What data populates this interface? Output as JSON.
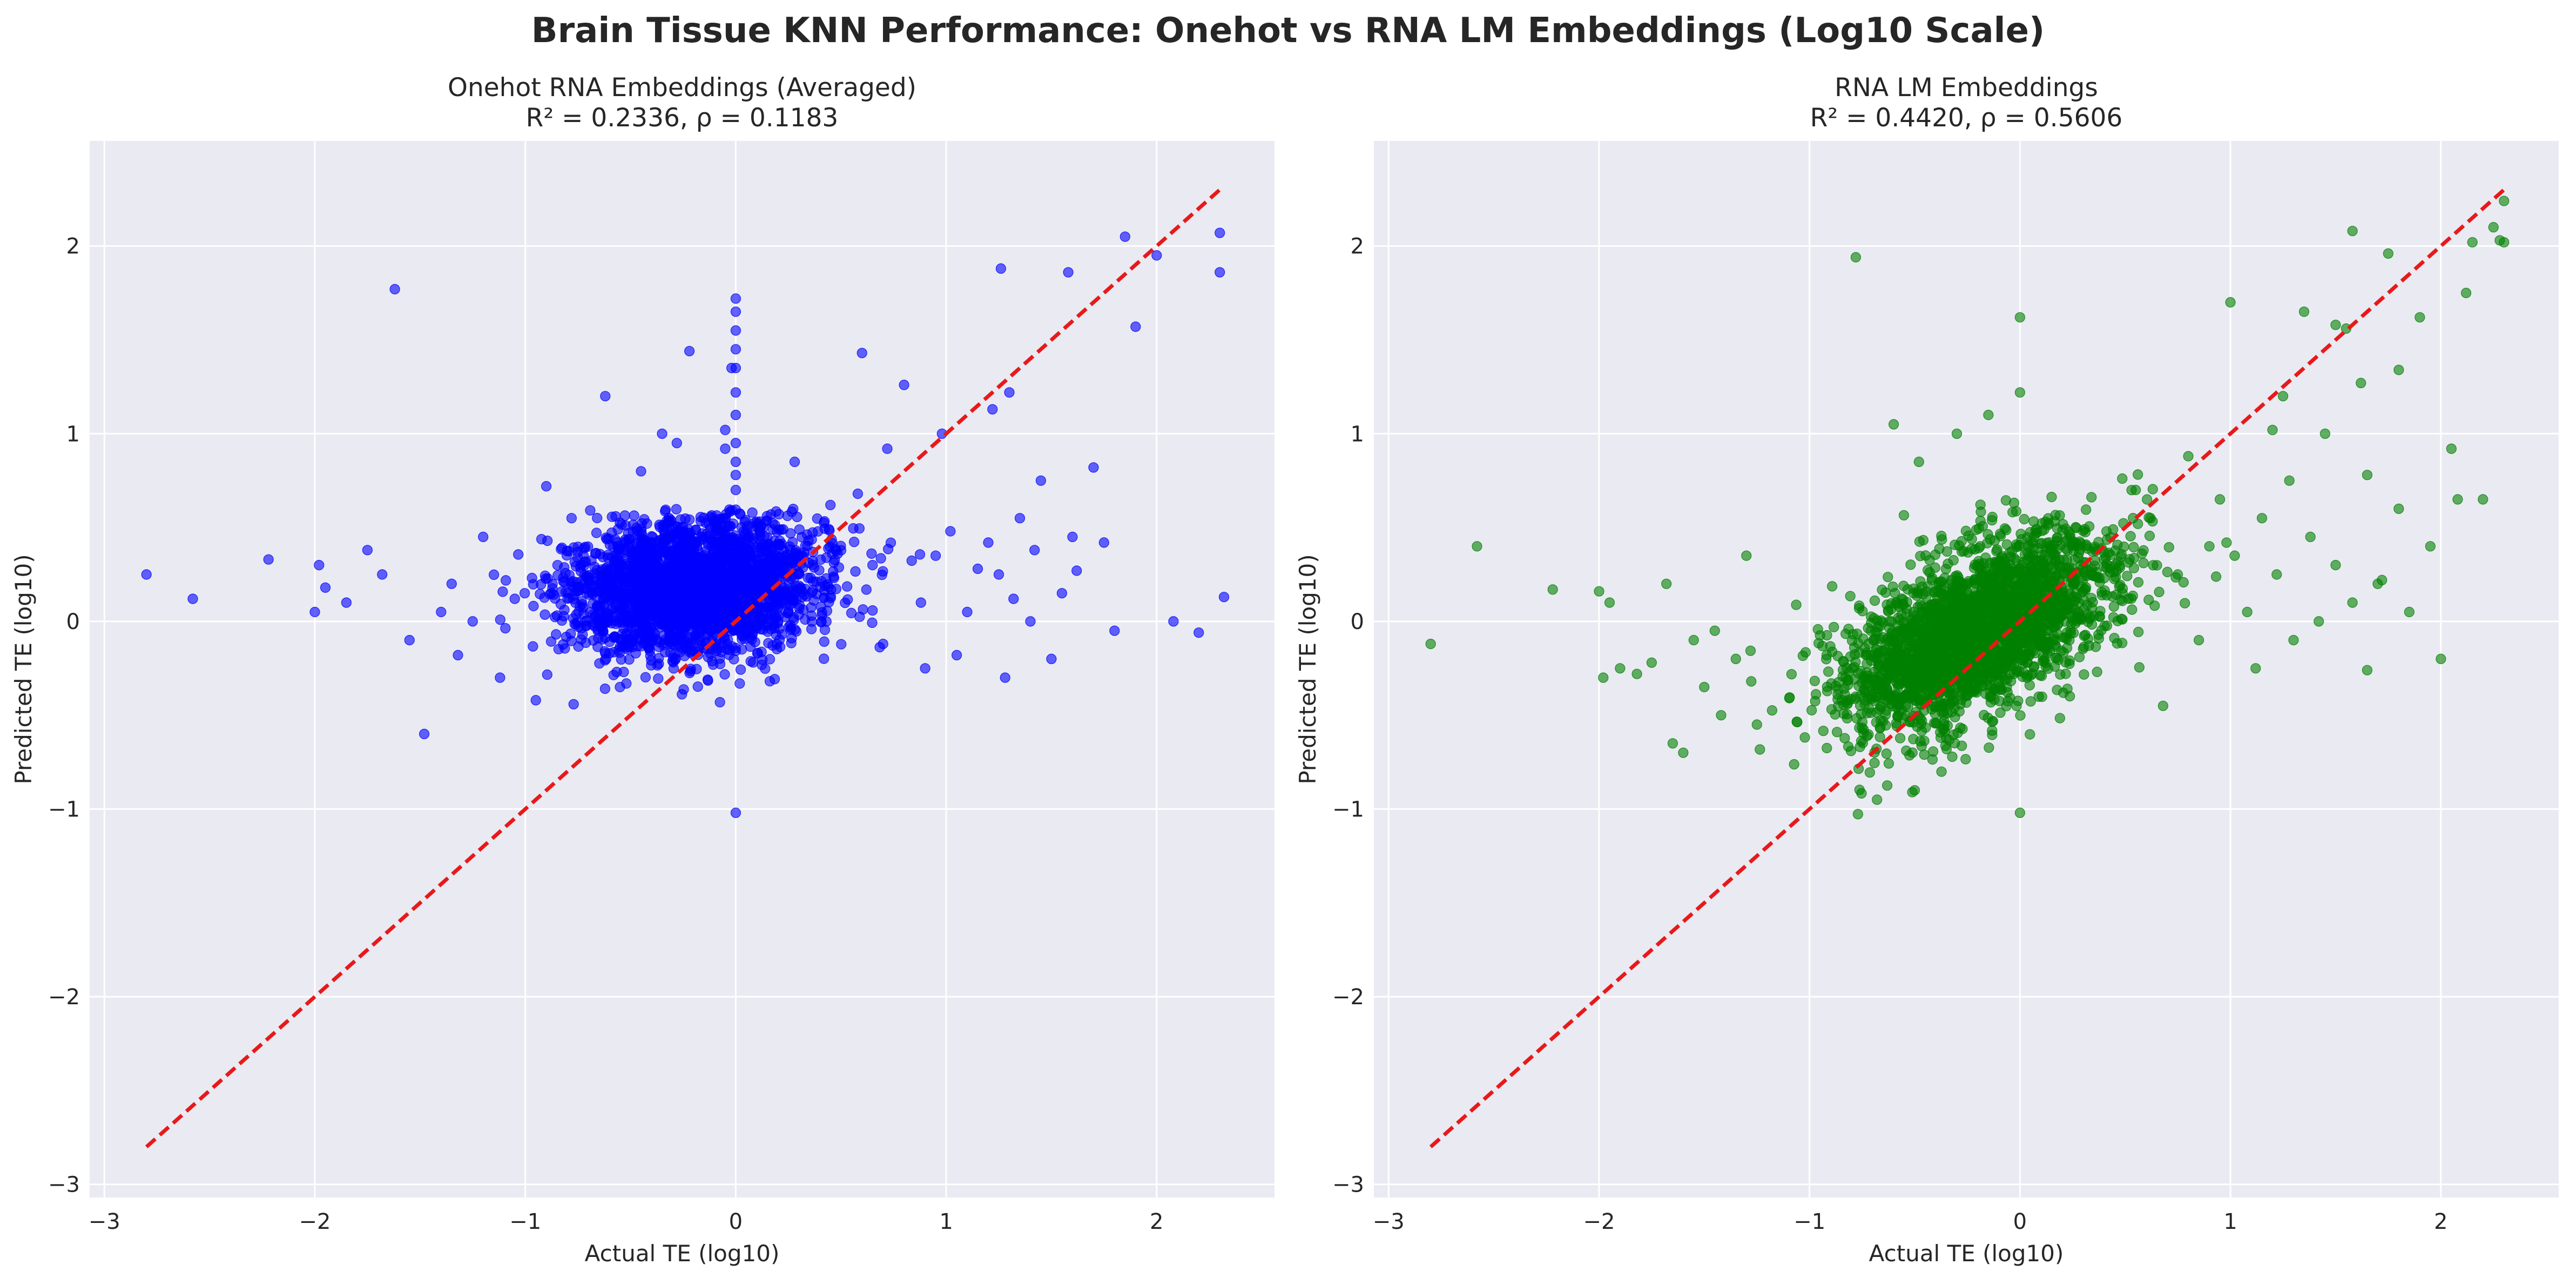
{
  "figure": {
    "title": "Brain Tissue KNN Performance: Onehot vs RNA LM Embeddings (Log10 Scale)"
  },
  "chart_data": [
    {
      "type": "scatter",
      "title": "Onehot RNA Embeddings (Averaged)",
      "subtitle": "R² = 0.2336, ρ = 0.1183",
      "xlabel": "Actual TE (log10)",
      "ylabel": "Predicted TE (log10)",
      "xlim": [
        -3.07,
        2.56
      ],
      "ylim": [
        -3.07,
        2.56
      ],
      "xticks": [
        -3,
        -2,
        -1,
        0,
        1,
        2
      ],
      "yticks": [
        -3,
        -2,
        -1,
        0,
        1,
        2
      ],
      "xtick_labels": [
        "−3",
        "−2",
        "−1",
        "0",
        "1",
        "2"
      ],
      "ytick_labels": [
        "−3",
        "−2",
        "−1",
        "0",
        "1",
        "2"
      ],
      "grid": true,
      "point_color": "#0000ff",
      "point_opacity": 0.6,
      "reference_line": {
        "from": [
          -2.8,
          -2.8
        ],
        "to": [
          2.3,
          2.3
        ],
        "color": "#e8191a",
        "style": "dashed"
      },
      "cloud": {
        "n": 2600,
        "seed": 11,
        "cx": -0.2,
        "cy": 0.18,
        "sx": 0.3,
        "sy": 0.18,
        "rho": 0.12,
        "clip_ymax": 0.6
      },
      "points": [
        [
          -2.8,
          0.25
        ],
        [
          -2.58,
          0.12
        ],
        [
          -2.22,
          0.33
        ],
        [
          -2.0,
          0.05
        ],
        [
          -1.98,
          0.3
        ],
        [
          -1.95,
          0.18
        ],
        [
          -1.85,
          0.1
        ],
        [
          -1.75,
          0.38
        ],
        [
          -1.68,
          0.25
        ],
        [
          -1.62,
          1.77
        ],
        [
          -1.55,
          -0.1
        ],
        [
          -1.48,
          -0.6
        ],
        [
          -1.4,
          0.05
        ],
        [
          -1.35,
          0.2
        ],
        [
          -1.32,
          -0.18
        ],
        [
          -1.25,
          0.0
        ],
        [
          -1.2,
          0.45
        ],
        [
          -1.12,
          -0.3
        ],
        [
          -1.05,
          0.12
        ],
        [
          -0.95,
          -0.42
        ],
        [
          -0.9,
          0.72
        ],
        [
          -0.78,
          0.55
        ],
        [
          -0.62,
          1.2
        ],
        [
          -0.55,
          -0.35
        ],
        [
          -0.45,
          0.8
        ],
        [
          -0.35,
          1.0
        ],
        [
          -0.28,
          0.95
        ],
        [
          -0.22,
          1.44
        ],
        [
          -0.05,
          1.02
        ],
        [
          -0.05,
          0.92
        ],
        [
          -0.02,
          1.35
        ],
        [
          0.0,
          1.72
        ],
        [
          0.0,
          1.65
        ],
        [
          0.0,
          1.55
        ],
        [
          0.0,
          1.45
        ],
        [
          0.0,
          1.35
        ],
        [
          0.0,
          1.22
        ],
        [
          0.0,
          1.1
        ],
        [
          0.0,
          0.95
        ],
        [
          0.0,
          0.85
        ],
        [
          0.0,
          0.78
        ],
        [
          0.0,
          0.7
        ],
        [
          0.0,
          -1.02
        ],
        [
          0.28,
          0.85
        ],
        [
          0.45,
          0.62
        ],
        [
          0.58,
          0.68
        ],
        [
          0.6,
          1.43
        ],
        [
          0.65,
          0.3
        ],
        [
          0.7,
          -0.12
        ],
        [
          0.72,
          0.92
        ],
        [
          0.8,
          1.26
        ],
        [
          0.88,
          0.1
        ],
        [
          0.9,
          -0.25
        ],
        [
          0.95,
          0.35
        ],
        [
          0.98,
          1.0
        ],
        [
          1.02,
          0.48
        ],
        [
          1.05,
          -0.18
        ],
        [
          1.1,
          0.05
        ],
        [
          1.15,
          0.28
        ],
        [
          1.2,
          0.42
        ],
        [
          1.22,
          1.13
        ],
        [
          1.25,
          0.25
        ],
        [
          1.28,
          -0.3
        ],
        [
          1.3,
          1.22
        ],
        [
          1.32,
          0.12
        ],
        [
          1.35,
          0.55
        ],
        [
          1.4,
          0.0
        ],
        [
          1.42,
          0.38
        ],
        [
          1.45,
          0.75
        ],
        [
          1.5,
          -0.2
        ],
        [
          1.55,
          0.15
        ],
        [
          1.6,
          0.45
        ],
        [
          1.62,
          0.27
        ],
        [
          1.7,
          0.82
        ],
        [
          1.75,
          0.42
        ],
        [
          1.8,
          -0.05
        ],
        [
          1.85,
          2.05
        ],
        [
          1.9,
          1.57
        ],
        [
          2.0,
          1.95
        ],
        [
          2.08,
          0.0
        ],
        [
          2.2,
          -0.06
        ],
        [
          2.3,
          2.07
        ],
        [
          2.3,
          1.86
        ],
        [
          2.32,
          0.13
        ],
        [
          1.26,
          1.88
        ],
        [
          1.58,
          1.86
        ]
      ]
    },
    {
      "type": "scatter",
      "title": "RNA LM Embeddings",
      "subtitle": "R² = 0.4420, ρ = 0.5606",
      "xlabel": "Actual TE (log10)",
      "ylabel": "Predicted TE (log10)",
      "xlim": [
        -3.07,
        2.56
      ],
      "ylim": [
        -3.07,
        2.56
      ],
      "xticks": [
        -3,
        -2,
        -1,
        0,
        1,
        2
      ],
      "yticks": [
        -3,
        -2,
        -1,
        0,
        1,
        2
      ],
      "xtick_labels": [
        "−3",
        "−2",
        "−1",
        "0",
        "1",
        "2"
      ],
      "ytick_labels": [
        "−3",
        "−2",
        "−1",
        "0",
        "1",
        "2"
      ],
      "grid": true,
      "point_color": "#008000",
      "point_opacity": 0.6,
      "reference_line": {
        "from": [
          -2.8,
          -2.8
        ],
        "to": [
          2.3,
          2.3
        ],
        "color": "#e8191a",
        "style": "dashed"
      },
      "cloud": {
        "n": 2600,
        "seed": 29,
        "cx": -0.2,
        "cy": -0.05,
        "sx": 0.32,
        "sy": 0.26,
        "rho": 0.56,
        "clip_ymax": 1.25
      },
      "points": [
        [
          -2.8,
          -0.12
        ],
        [
          -2.58,
          0.4
        ],
        [
          -2.22,
          0.17
        ],
        [
          -2.0,
          0.16
        ],
        [
          -1.98,
          -0.3
        ],
        [
          -1.95,
          0.1
        ],
        [
          -1.9,
          -0.25
        ],
        [
          -1.82,
          -0.28
        ],
        [
          -1.75,
          -0.22
        ],
        [
          -1.68,
          0.2
        ],
        [
          -1.65,
          -0.65
        ],
        [
          -1.6,
          -0.7
        ],
        [
          -1.55,
          -0.1
        ],
        [
          -1.5,
          -0.35
        ],
        [
          -1.45,
          -0.05
        ],
        [
          -1.42,
          -0.5
        ],
        [
          -1.35,
          -0.2
        ],
        [
          -1.3,
          0.35
        ],
        [
          -1.25,
          -0.55
        ],
        [
          -0.78,
          1.94
        ],
        [
          -0.6,
          1.05
        ],
        [
          -0.48,
          0.85
        ],
        [
          -0.5,
          -0.9
        ],
        [
          -0.3,
          1.0
        ],
        [
          -0.15,
          1.1
        ],
        [
          0.0,
          1.22
        ],
        [
          0.0,
          1.62
        ],
        [
          0.0,
          -1.02
        ],
        [
          0.55,
          0.7
        ],
        [
          0.62,
          0.55
        ],
        [
          0.68,
          -0.45
        ],
        [
          0.75,
          0.25
        ],
        [
          0.8,
          0.88
        ],
        [
          0.85,
          -0.1
        ],
        [
          0.9,
          0.4
        ],
        [
          0.95,
          0.65
        ],
        [
          1.0,
          1.7
        ],
        [
          1.02,
          0.35
        ],
        [
          1.08,
          0.05
        ],
        [
          1.12,
          -0.25
        ],
        [
          1.15,
          0.55
        ],
        [
          1.2,
          1.02
        ],
        [
          1.22,
          0.25
        ],
        [
          1.25,
          1.2
        ],
        [
          1.28,
          0.75
        ],
        [
          1.3,
          -0.1
        ],
        [
          1.35,
          1.65
        ],
        [
          1.38,
          0.45
        ],
        [
          1.42,
          0.0
        ],
        [
          1.45,
          1.0
        ],
        [
          1.5,
          0.3
        ],
        [
          1.55,
          1.56
        ],
        [
          1.58,
          0.1
        ],
        [
          1.62,
          1.27
        ],
        [
          1.65,
          0.78
        ],
        [
          1.7,
          0.2
        ],
        [
          1.75,
          1.96
        ],
        [
          1.8,
          0.6
        ],
        [
          1.85,
          0.05
        ],
        [
          1.9,
          1.62
        ],
        [
          1.95,
          0.4
        ],
        [
          2.0,
          -0.2
        ],
        [
          2.05,
          0.92
        ],
        [
          2.08,
          0.65
        ],
        [
          2.12,
          1.75
        ],
        [
          2.15,
          2.02
        ],
        [
          2.2,
          0.65
        ],
        [
          2.25,
          2.1
        ],
        [
          2.28,
          2.03
        ],
        [
          2.3,
          2.24
        ],
        [
          2.3,
          2.02
        ],
        [
          1.58,
          2.08
        ],
        [
          1.5,
          1.58
        ],
        [
          1.8,
          1.34
        ],
        [
          1.65,
          -0.26
        ],
        [
          1.72,
          0.22
        ]
      ]
    }
  ]
}
